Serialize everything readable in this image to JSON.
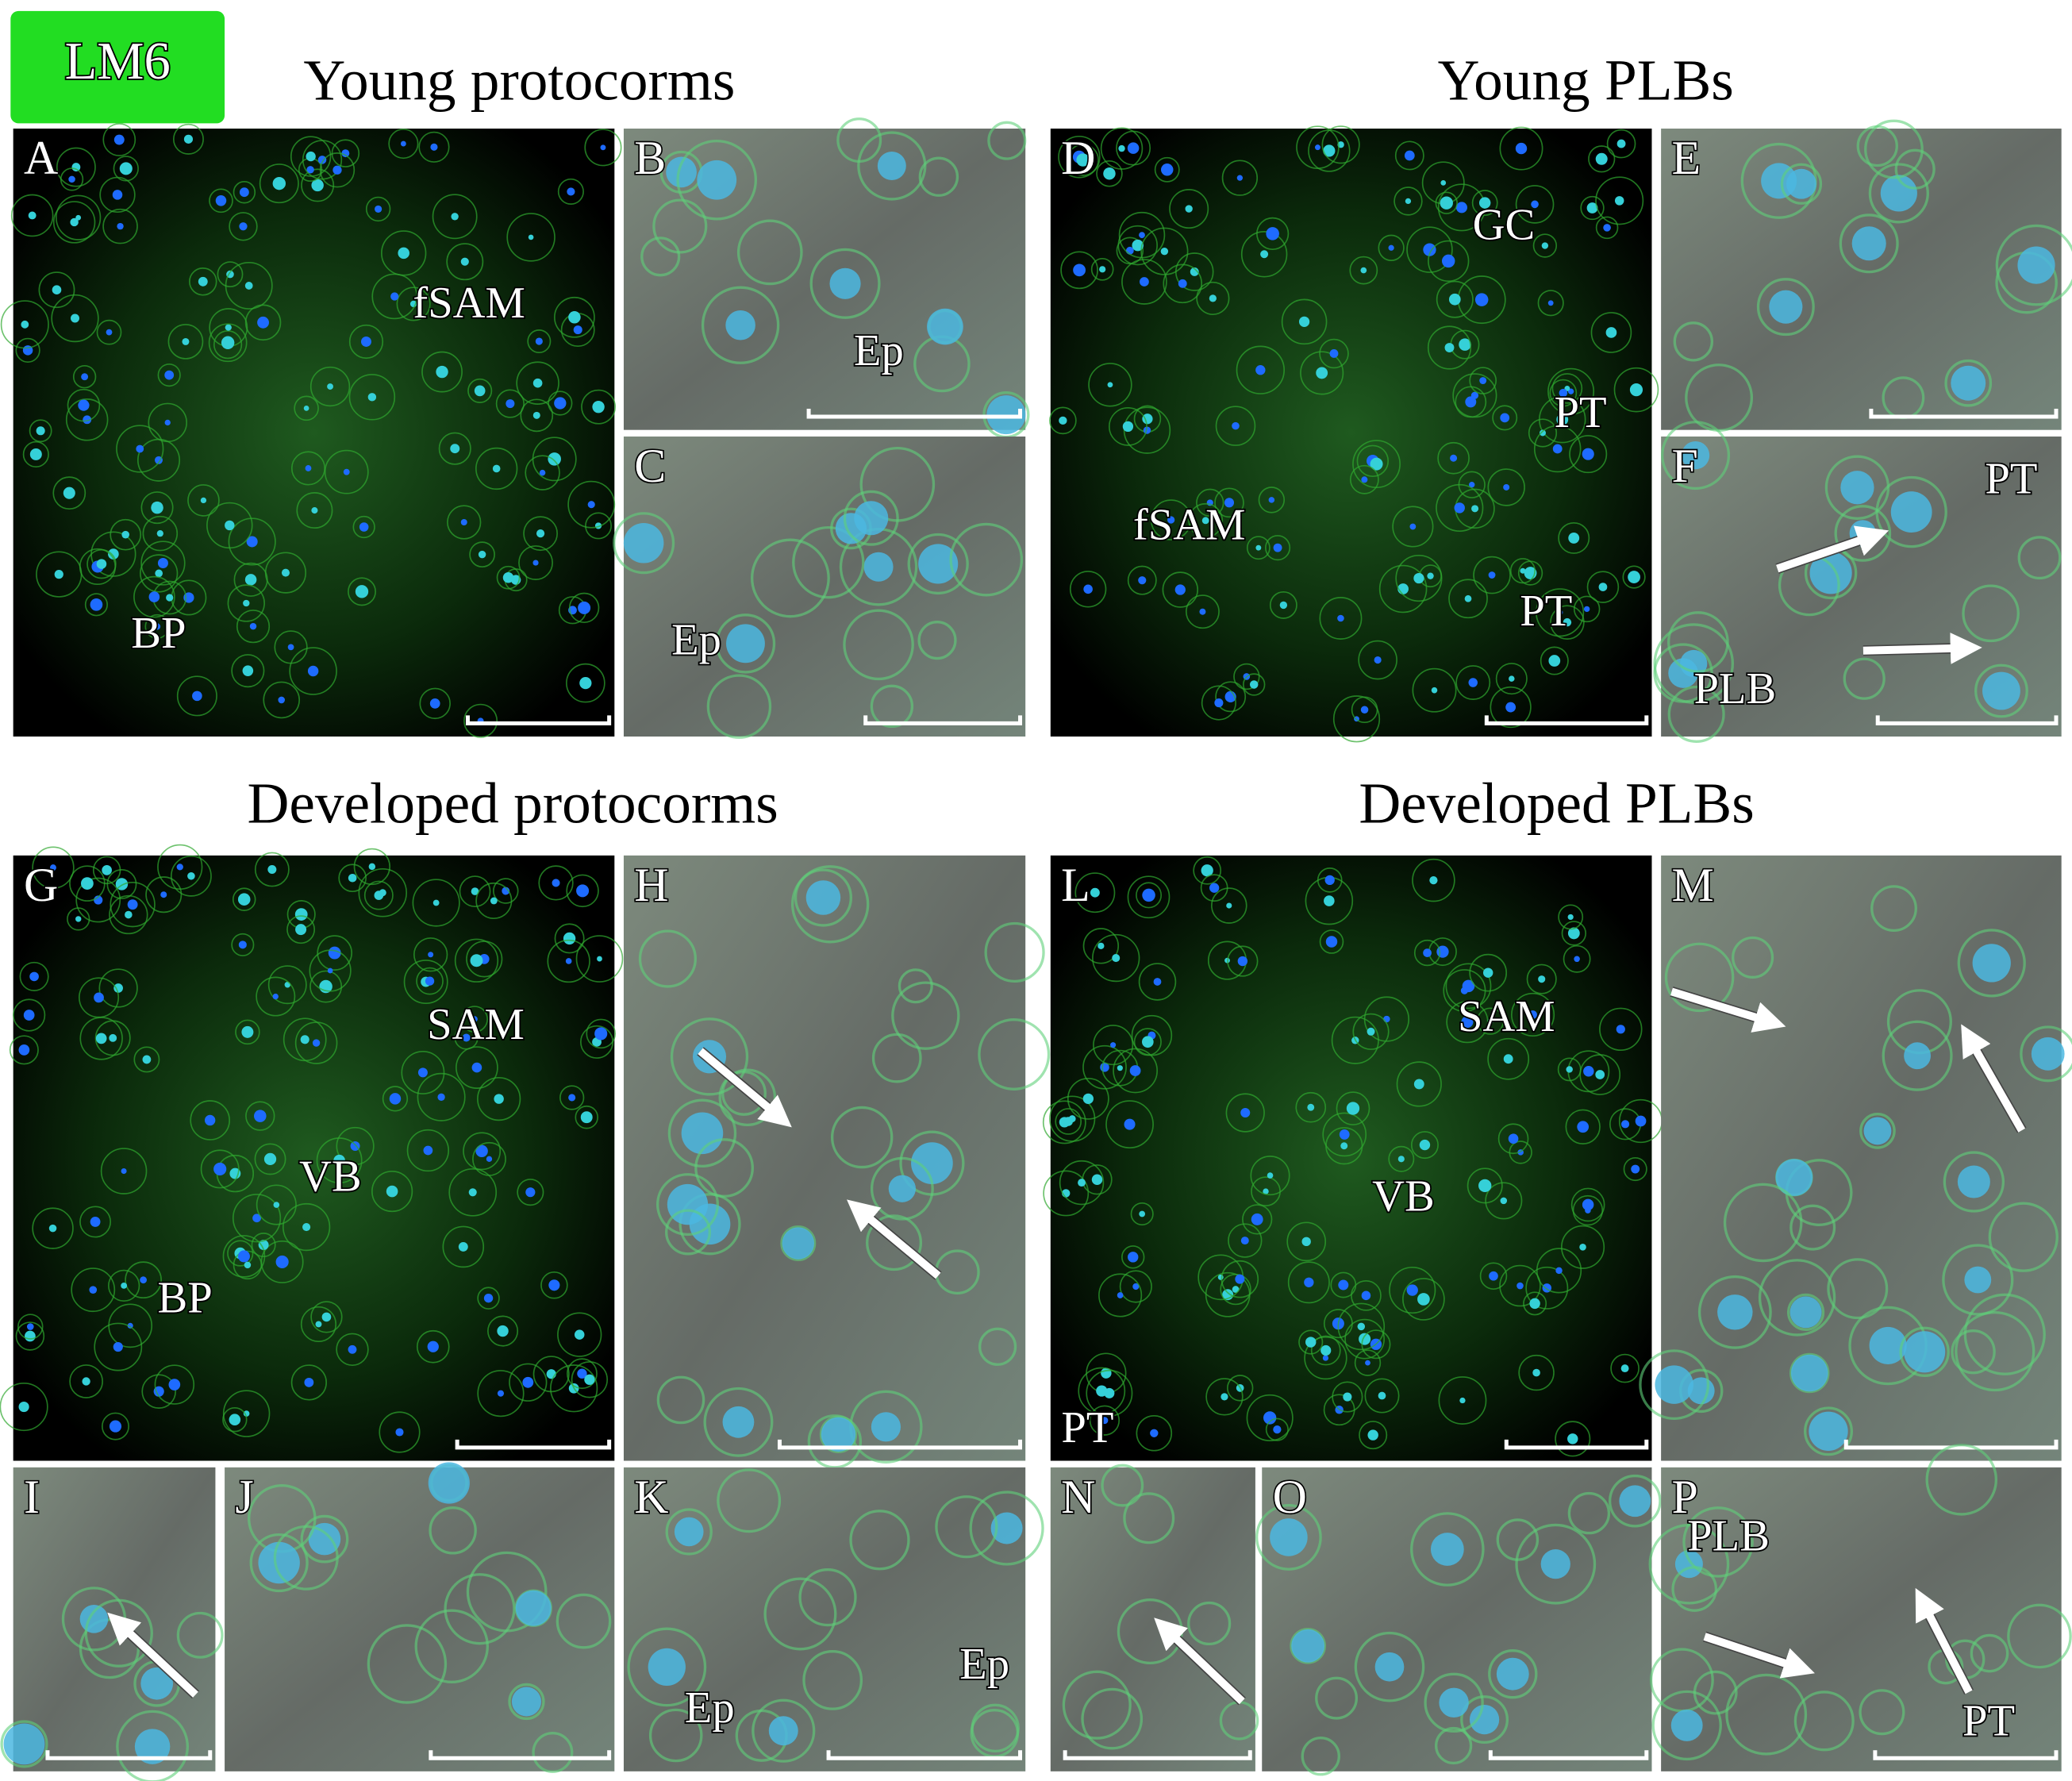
{
  "header": {
    "badge": "LM6"
  },
  "sections": [
    {
      "title": "Young protocorms"
    },
    {
      "title": "Young PLBs"
    },
    {
      "title": "Developed protocorms"
    },
    {
      "title": "Developed PLBs"
    }
  ],
  "panels": [
    {
      "letter": "A",
      "labels": [
        "fSAM",
        "BP"
      ]
    },
    {
      "letter": "B",
      "labels": [
        "Ep"
      ]
    },
    {
      "letter": "C",
      "labels": [
        "Ep"
      ]
    },
    {
      "letter": "D",
      "labels": [
        "GC",
        "PT",
        "fSAM",
        "PT"
      ]
    },
    {
      "letter": "E",
      "labels": []
    },
    {
      "letter": "F",
      "labels": [
        "PT",
        "PLB"
      ]
    },
    {
      "letter": "G",
      "labels": [
        "SAM",
        "VB",
        "BP"
      ]
    },
    {
      "letter": "H",
      "labels": []
    },
    {
      "letter": "I",
      "labels": []
    },
    {
      "letter": "J",
      "labels": []
    },
    {
      "letter": "K",
      "labels": [
        "Ep",
        "Ep"
      ]
    },
    {
      "letter": "L",
      "labels": [
        "SAM",
        "VB",
        "PT"
      ]
    },
    {
      "letter": "M",
      "labels": []
    },
    {
      "letter": "N",
      "labels": []
    },
    {
      "letter": "O",
      "labels": []
    },
    {
      "letter": "P",
      "labels": [
        "PLB",
        "PT"
      ]
    }
  ]
}
